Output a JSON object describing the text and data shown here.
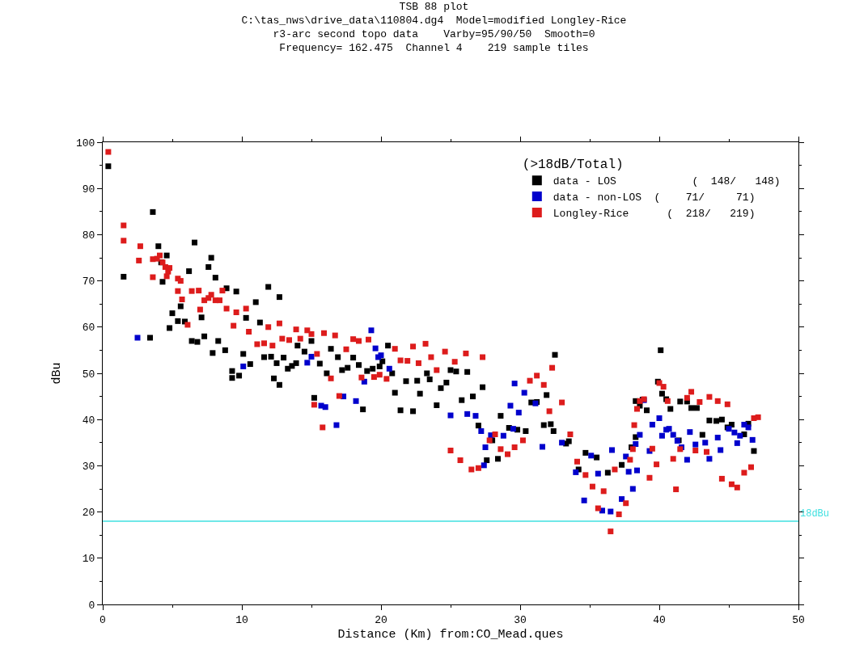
{
  "chart_data": {
    "type": "scatter",
    "title": "TSB 88 plot\nC:\\tas_nws\\drive_data\\110804.dg4  Model=modified Longley-Rice\nr3-arc second topo data    Varby=95/90/50  Smooth=0\nFrequency= 162.475  Channel 4    219 sample tiles",
    "xlabel": "Distance (Km) from:CO_Mead.ques",
    "ylabel": "dBu",
    "legend_title": "(>18dB/Total)",
    "legend": "top right",
    "marker": "square",
    "xlim": [
      0,
      50
    ],
    "xticks": [
      0,
      10,
      20,
      30,
      40,
      50
    ],
    "ylim": [
      0,
      100
    ],
    "yticks": [
      0,
      10,
      20,
      30,
      40,
      50,
      60,
      70,
      80,
      90,
      100
    ],
    "ref_lines": [
      {
        "axis": "y",
        "value": 18,
        "label": "18dBu",
        "color": "#40e0e0"
      }
    ],
    "series": [
      {
        "name": "data - LOS            (  148/   148)",
        "color": "#000000",
        "x": [
          0.4,
          1.5,
          3.4,
          3.6,
          4.0,
          4.2,
          4.3,
          4.6,
          4.8,
          5.0,
          5.4,
          5.6,
          5.9,
          6.2,
          6.4,
          6.6,
          6.8,
          7.1,
          7.3,
          7.6,
          7.8,
          7.9,
          8.1,
          8.3,
          8.8,
          8.9,
          9.3,
          9.3,
          9.6,
          9.8,
          10.1,
          10.3,
          10.6,
          11.0,
          11.3,
          11.6,
          11.9,
          12.1,
          12.3,
          12.5,
          12.7,
          12.7,
          13.0,
          13.3,
          13.6,
          13.9,
          14.0,
          14.5,
          15.0,
          15.2,
          15.6,
          16.1,
          16.4,
          16.9,
          17.2,
          17.6,
          18.0,
          18.4,
          18.7,
          19.0,
          19.4,
          19.9,
          20.1,
          20.5,
          20.8,
          21.0,
          21.4,
          21.8,
          22.3,
          22.6,
          22.8,
          23.3,
          23.5,
          24.0,
          24.3,
          24.7,
          25.0,
          25.4,
          25.8,
          26.2,
          26.6,
          27.0,
          27.3,
          27.6,
          28.0,
          28.4,
          28.6,
          29.2,
          29.8,
          30.4,
          30.8,
          31.2,
          31.7,
          31.9,
          32.2,
          32.4,
          32.5,
          33.3,
          33.5,
          34.2,
          34.7,
          35.5,
          36.3,
          37.3,
          38.0,
          38.3,
          38.3,
          38.6,
          38.8,
          39.1,
          39.9,
          40.1,
          40.2,
          40.5,
          40.8,
          41.4,
          41.5,
          42.0,
          42.3,
          42.7,
          43.1,
          43.6,
          44.1,
          44.5,
          44.9,
          45.2,
          46.1,
          46.4,
          46.8
        ],
        "values": [
          94.8,
          70.9,
          57.7,
          84.9,
          77.5,
          74,
          69.8,
          75.5,
          59.8,
          63,
          61.3,
          64.5,
          61.2,
          72.1,
          57,
          78.3,
          56.8,
          62.1,
          58,
          73,
          75,
          54.4,
          70.7,
          57,
          55,
          68.4,
          50.5,
          49,
          67.7,
          49.5,
          54.2,
          62,
          52,
          65.4,
          61,
          53.5,
          68.7,
          53.6,
          48.9,
          52.2,
          47.5,
          66.5,
          53.4,
          51,
          51.6,
          52.2,
          56,
          54.7,
          57,
          44.7,
          52.1,
          50,
          55.3,
          53.5,
          50.7,
          51.2,
          53.4,
          51.8,
          42.2,
          50.5,
          51,
          51.5,
          52.6,
          56,
          50,
          45.8,
          42,
          48.3,
          41.8,
          48.4,
          45.6,
          50,
          48.7,
          43.1,
          46.8,
          48,
          50.7,
          50.4,
          44.2,
          50.3,
          45,
          38.7,
          47,
          31.2,
          35.5,
          31.5,
          40.8,
          38.2,
          37.8,
          37.5,
          43.7,
          43.8,
          38.8,
          45.3,
          39,
          37.5,
          54,
          34.8,
          35.3,
          29.2,
          32.8,
          31.8,
          28.5,
          30.2,
          34,
          36.2,
          44,
          43,
          44.3,
          42,
          48.2,
          55,
          45.6,
          44.4,
          42.3,
          35.5,
          43.9,
          43.9,
          42.5,
          42.5,
          36.7,
          39.8,
          39.7,
          40,
          38.3,
          38.9,
          36.8,
          39.1,
          33.2
        ]
      },
      {
        "name": "data - non-LOS  (    71/     71)",
        "color": "#0000cc",
        "x": [
          2.5,
          10.1,
          14.7,
          15.0,
          15.7,
          16.0,
          16.8,
          17.3,
          18.2,
          18.8,
          19.3,
          19.6,
          19.8,
          20.0,
          20.6,
          25.0,
          26.2,
          26.8,
          27.2,
          27.4,
          27.5,
          27.9,
          28.8,
          29.3,
          29.5,
          29.6,
          29.9,
          30.3,
          31.1,
          31.6,
          33.0,
          34.0,
          34.6,
          35.1,
          35.6,
          35.9,
          36.5,
          36.6,
          37.3,
          37.6,
          37.8,
          38.1,
          38.3,
          38.4,
          38.6,
          38.9,
          39.3,
          39.5,
          40.0,
          40.2,
          40.5,
          40.7,
          41.0,
          41.3,
          41.6,
          42.0,
          42.2,
          42.6,
          43.3,
          43.6,
          44.2,
          44.4,
          45.0,
          45.4,
          45.6,
          45.8,
          46.1,
          46.4,
          46.7
        ],
        "values": [
          57.7,
          51.5,
          52.3,
          53.6,
          43,
          42.7,
          38.8,
          45,
          44,
          48.2,
          59.3,
          55.4,
          53.5,
          53.9,
          51,
          40.9,
          41.2,
          40.8,
          37.5,
          30.1,
          34,
          36.6,
          36.5,
          43,
          38,
          47.8,
          41.5,
          45.8,
          43.5,
          34.1,
          35,
          28.6,
          22.5,
          32.2,
          28.3,
          20.3,
          20.1,
          33.4,
          22.8,
          32,
          28.7,
          25,
          34.7,
          29,
          36.7,
          44.2,
          33.2,
          38.9,
          40.3,
          36.5,
          37.8,
          38,
          36.7,
          35.4,
          34,
          31.3,
          37.3,
          34.6,
          35,
          31.5,
          36.1,
          33.4,
          38,
          37.2,
          34.9,
          36.5,
          38.9,
          38.3,
          35.6
        ]
      },
      {
        "name": "Longley-Rice      (  218/   219)",
        "color": "#dd1c1c",
        "x": [
          0.4,
          1.5,
          1.5,
          2.7,
          2.6,
          3.6,
          3.6,
          3.9,
          4.1,
          4.3,
          4.5,
          4.7,
          4.6,
          4.8,
          5.4,
          5.6,
          5.4,
          5.7,
          6.1,
          6.4,
          6.9,
          7.0,
          7.3,
          7.6,
          7.8,
          8.1,
          8.4,
          8.6,
          8.9,
          9.4,
          9.6,
          10.3,
          10.5,
          11.1,
          11.6,
          11.9,
          12.2,
          12.7,
          12.9,
          13.4,
          13.9,
          14.2,
          14.7,
          15.0,
          15.4,
          15.2,
          15.8,
          15.9,
          16.4,
          16.7,
          17.0,
          17.5,
          18.0,
          18.4,
          18.6,
          19.1,
          19.5,
          19.9,
          20.4,
          21.0,
          21.4,
          21.9,
          22.3,
          22.7,
          23.2,
          23.6,
          24.0,
          24.6,
          25.0,
          25.3,
          25.7,
          26.1,
          26.5,
          27.0,
          27.3,
          27.8,
          28.2,
          28.6,
          29.1,
          29.6,
          30.2,
          30.7,
          31.2,
          31.7,
          32.1,
          32.3,
          33.0,
          33.6,
          34.1,
          34.7,
          35.2,
          35.6,
          36.0,
          36.5,
          36.8,
          37.1,
          37.6,
          37.9,
          38.1,
          38.2,
          38.4,
          38.6,
          38.9,
          39.3,
          39.5,
          39.8,
          40.0,
          40.3,
          40.6,
          41.0,
          41.2,
          41.5,
          42.0,
          42.3,
          42.6,
          42.9,
          43.4,
          43.6,
          44.2,
          44.5,
          44.9,
          45.2,
          45.6,
          46.1,
          46.6,
          46.8,
          47.1
        ],
        "values": [
          97.9,
          82,
          78.7,
          77.5,
          74.4,
          70.8,
          74.7,
          74.8,
          75.5,
          74,
          73,
          72,
          71,
          72.8,
          70.5,
          70,
          67.8,
          66,
          60.5,
          67.8,
          67.9,
          63.8,
          65.8,
          66.3,
          67,
          65.8,
          65.8,
          67.9,
          64,
          60.3,
          63.2,
          64,
          59,
          56.3,
          56.5,
          60,
          56,
          60.8,
          57.5,
          57.2,
          59.5,
          57.5,
          59.3,
          58.5,
          54.2,
          43.2,
          38.3,
          58.7,
          48.9,
          58.2,
          45.1,
          55.2,
          57.4,
          57,
          49.1,
          57.3,
          49.2,
          49.7,
          48.8,
          55.3,
          52.8,
          52.7,
          55.8,
          52.2,
          56.4,
          53.5,
          50.7,
          54.7,
          33.3,
          52.5,
          31.2,
          54.3,
          29.2,
          29.5,
          53.5,
          35.5,
          36.8,
          33.6,
          32.5,
          34,
          35.5,
          48.4,
          49.5,
          47.5,
          41.8,
          51.2,
          43.7,
          36.8,
          30.9,
          28,
          25.5,
          20.8,
          24.5,
          15.8,
          29.2,
          19.5,
          21.9,
          31.3,
          33.6,
          38.8,
          42.3,
          44,
          44.4,
          27.4,
          33.7,
          30.3,
          47.9,
          47.1,
          44,
          31.5,
          24.9,
          33.6,
          44.7,
          46,
          33.3,
          43.8,
          33,
          44.9,
          44,
          27.2,
          43.3,
          26,
          25.3,
          28.5,
          29.7,
          40.3,
          40.5
        ]
      }
    ]
  }
}
